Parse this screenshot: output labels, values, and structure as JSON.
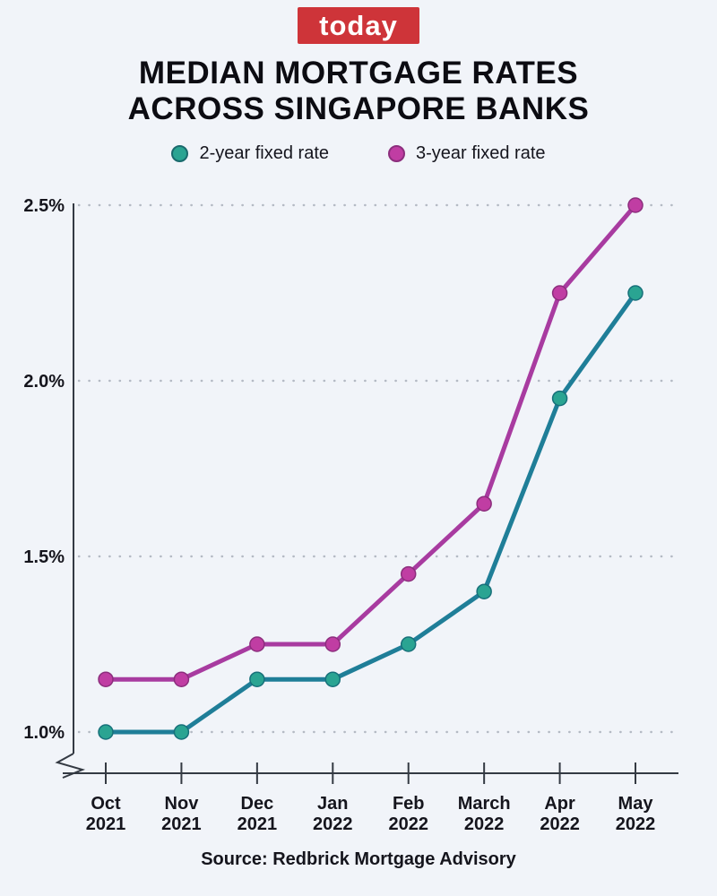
{
  "page": {
    "background": "#f1f4f9"
  },
  "logo": {
    "text": "today",
    "bg": "#ce3439",
    "fg": "#ffffff"
  },
  "title": {
    "line1": "MEDIAN MORTGAGE RATES",
    "line2": "ACROSS SINGAPORE BANKS"
  },
  "legend": [
    {
      "label": "2-year fixed rate",
      "color": "#2aa492",
      "border": "#1a6a6d"
    },
    {
      "label": "3-year fixed rate",
      "color": "#c03da3",
      "border": "#8c2e7d"
    }
  ],
  "source": "Source: Redbrick Mortgage Advisory",
  "chart_data": {
    "type": "line",
    "title": "MEDIAN MORTGAGE RATES ACROSS SINGAPORE BANKS",
    "xlabel": "",
    "ylabel": "",
    "categories": [
      [
        "Oct",
        "2021"
      ],
      [
        "Nov",
        "2021"
      ],
      [
        "Dec",
        "2021"
      ],
      [
        "Jan",
        "2022"
      ],
      [
        "Feb",
        "2022"
      ],
      [
        "March",
        "2022"
      ],
      [
        "Apr",
        "2022"
      ],
      [
        "May",
        "2022"
      ]
    ],
    "series": [
      {
        "name": "2-year fixed rate",
        "values": [
          1.0,
          1.0,
          1.15,
          1.15,
          1.25,
          1.4,
          1.95,
          2.25
        ],
        "line_color": "#1f7e98",
        "marker_color": "#2aa492",
        "marker_border": "#17707a"
      },
      {
        "name": "3-year fixed rate",
        "values": [
          1.15,
          1.15,
          1.25,
          1.25,
          1.45,
          1.65,
          2.25,
          2.5
        ],
        "line_color": "#a83ba0",
        "marker_color": "#c03da3",
        "marker_border": "#8c2e7d"
      }
    ],
    "y_ticks": [
      "1.0%",
      "1.5%",
      "2.0%",
      "2.5%"
    ],
    "y_tick_values": [
      1.0,
      1.5,
      2.0,
      2.5
    ],
    "ylim": [
      1.0,
      2.5
    ],
    "grid": "dotted-horizontal",
    "axis_break": true,
    "legend_position": "top",
    "axis_color": "#343a43",
    "grid_color": "#b4bac4",
    "tick_label_color": "#15151d"
  }
}
